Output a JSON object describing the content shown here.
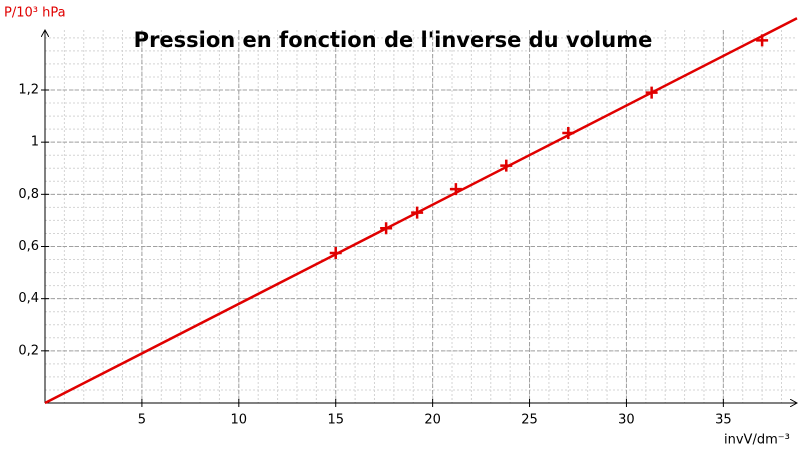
{
  "chart_data": {
    "type": "scatter",
    "title": "Pression en fonction de l'inverse du volume",
    "x_label": "invV/dm⁻³",
    "y_label": "P/10³ hPa",
    "xlim": [
      0,
      38.8
    ],
    "ylim": [
      0,
      1.43
    ],
    "xticks": [
      5,
      10,
      15,
      20,
      25,
      30,
      35
    ],
    "yticks": [
      {
        "value": 0.2,
        "label": "0,2"
      },
      {
        "value": 0.4,
        "label": "0,4"
      },
      {
        "value": 0.6,
        "label": "0,6"
      },
      {
        "value": 0.8,
        "label": "0,8"
      },
      1,
      {
        "value": 1.2,
        "label": "1,2"
      }
    ],
    "grid": true,
    "series": [
      {
        "color": "#e00000",
        "marker": "+",
        "x": [
          15.0,
          17.6,
          19.2,
          21.2,
          23.8,
          27.0,
          31.3,
          37.0
        ],
        "values": [
          0.575,
          0.67,
          0.73,
          0.82,
          0.91,
          1.035,
          1.19,
          1.39
        ]
      },
      {
        "color": "#e00000",
        "marker": "line",
        "x": [
          0,
          38.8
        ],
        "values": [
          0,
          1.475
        ]
      }
    ]
  }
}
